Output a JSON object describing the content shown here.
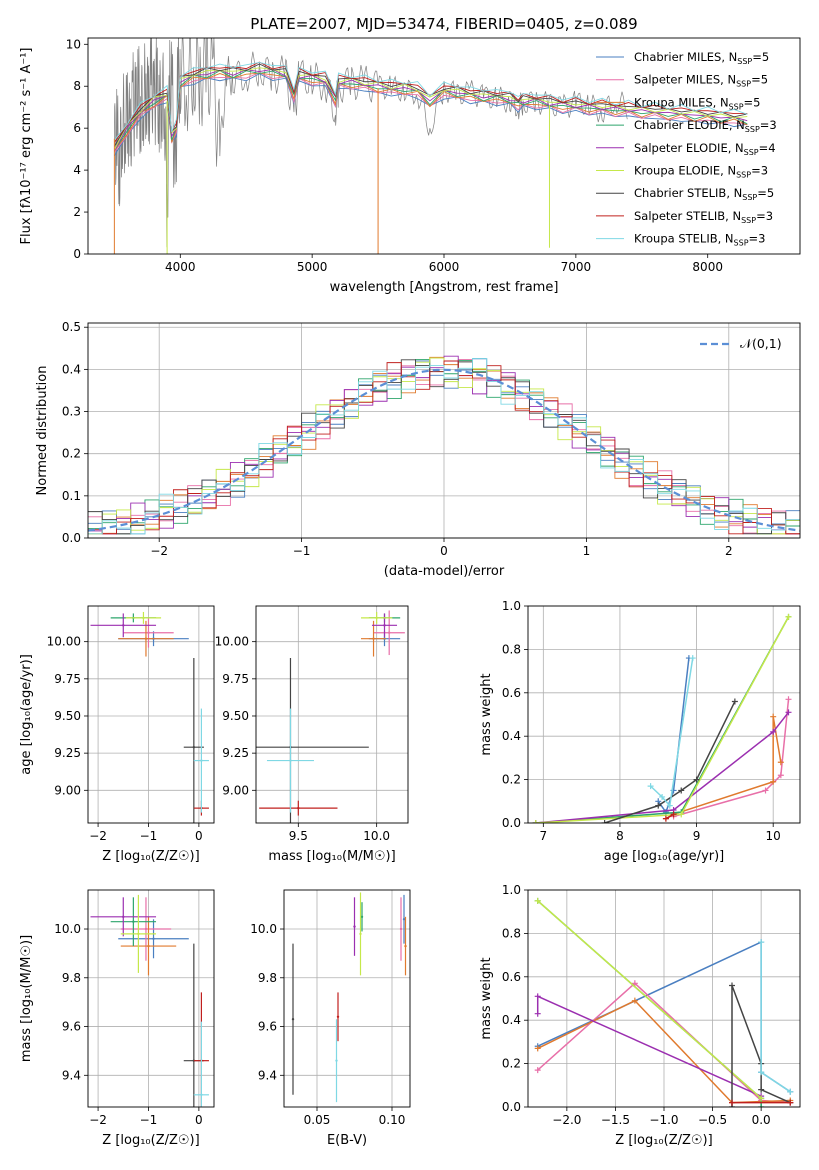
{
  "figure_title": "PLATE=2007, MJD=53474, FIBERID=0405, z=0.089",
  "chart_data": [
    {
      "id": "spectrum",
      "type": "line",
      "xlabel": "wavelength [Angstrom, rest frame]",
      "ylabel": "Flux [fλ10⁻¹⁷ erg cm⁻² s⁻¹ A⁻¹]",
      "xlim": [
        3300,
        8700
      ],
      "ylim": [
        0,
        10.3
      ],
      "xticks": [
        "4000",
        "5000",
        "6000",
        "7000",
        "8000"
      ],
      "yticks": [
        "0",
        "2",
        "4",
        "6",
        "8",
        "10"
      ],
      "grid": false,
      "legend": "right",
      "data_series": {
        "name": "data",
        "color": "#808080",
        "x": [
          3500,
          3520,
          3540,
          3560,
          3580,
          3600,
          3620,
          3640,
          3660,
          3680,
          3700,
          3720,
          3740,
          3760,
          3780,
          3800,
          3820,
          3840,
          3860,
          3880,
          3900,
          3920,
          3940,
          3960,
          3980,
          4000,
          4050,
          4100,
          4150,
          4200,
          4250,
          4300,
          4350,
          4400,
          4500,
          4600,
          4700,
          4800,
          4862,
          4900,
          5000,
          5100,
          5176,
          5200,
          5300,
          5400,
          5500,
          5600,
          5700,
          5800,
          5893,
          6000,
          6100,
          6200,
          6300,
          6400,
          6500,
          6563,
          6600,
          6700,
          6800,
          6900,
          7000,
          7100,
          7200,
          7300,
          7400
        ],
        "y": [
          5.2,
          5.6,
          4.2,
          6.5,
          6.0,
          7.1,
          5.3,
          7.3,
          6.8,
          7.8,
          6.9,
          7.4,
          7.9,
          7.2,
          8.4,
          7.0,
          8.1,
          6.7,
          7.7,
          7.3,
          2.2,
          8.3,
          7.6,
          3.2,
          8.0,
          8.6,
          8.2,
          8.8,
          8.4,
          8.7,
          8.3,
          4.8,
          8.6,
          8.4,
          8.6,
          8.9,
          8.5,
          8.6,
          6.5,
          8.5,
          8.3,
          8.2,
          6.8,
          8.0,
          8.2,
          8.1,
          8.0,
          7.9,
          7.8,
          7.7,
          6.0,
          7.9,
          7.6,
          7.7,
          7.5,
          7.4,
          7.3,
          7.0,
          7.2,
          7.3,
          7.1,
          7.0,
          7.2,
          7.1,
          6.8,
          7.3,
          7.0
        ]
      },
      "series": [
        {
          "name": "Chabrier MILES, N_SSP=5",
          "color": "#4a7fc1"
        },
        {
          "name": "Salpeter MILES, N_SSP=5",
          "color": "#e86fa8"
        },
        {
          "name": "Kroupa MILES, N_SSP=5",
          "color": "#e07a2e"
        },
        {
          "name": "Chabrier ELODIE, N_SSP=3",
          "color": "#2ca56b"
        },
        {
          "name": "Salpeter ELODIE, N_SSP=4",
          "color": "#9b2fb0"
        },
        {
          "name": "Kroupa ELODIE, N_SSP=3",
          "color": "#c5e84a"
        },
        {
          "name": "Chabrier STELIB, N_SSP=5",
          "color": "#444444"
        },
        {
          "name": "Salpeter STELIB, N_SSP=3",
          "color": "#c0201e"
        },
        {
          "name": "Kroupa STELIB, N_SSP=3",
          "color": "#7fd8e4"
        }
      ],
      "model_x": [
        3500,
        3600,
        3700,
        3800,
        3900,
        3935,
        3970,
        4000,
        4100,
        4200,
        4300,
        4400,
        4500,
        4600,
        4700,
        4800,
        4862,
        4900,
        5000,
        5100,
        5176,
        5200,
        5300,
        5400,
        5500,
        5600,
        5700,
        5800,
        5893,
        6000,
        6100,
        6200,
        6300,
        6400,
        6500,
        6563,
        6600,
        6700,
        6800,
        6900,
        7000,
        7100,
        7200,
        7300,
        7400,
        7500,
        7600,
        7700,
        7800,
        7900,
        8000,
        8100,
        8200,
        8300
      ],
      "model_y": [
        5.0,
        6.0,
        6.8,
        7.3,
        7.6,
        5.6,
        6.0,
        8.2,
        8.5,
        8.6,
        8.7,
        8.6,
        8.7,
        8.8,
        8.7,
        8.6,
        7.6,
        8.5,
        8.4,
        8.3,
        7.4,
        8.2,
        8.2,
        8.1,
        8.0,
        7.9,
        7.9,
        7.8,
        7.3,
        7.8,
        7.7,
        7.6,
        7.5,
        7.5,
        7.4,
        7.2,
        7.3,
        7.3,
        7.2,
        7.1,
        7.1,
        7.0,
        7.0,
        6.9,
        6.9,
        6.8,
        6.8,
        6.7,
        6.7,
        6.6,
        6.6,
        6.5,
        6.5,
        6.4
      ]
    },
    {
      "id": "residuals",
      "type": "line",
      "xlabel": "(data-model)/error",
      "ylabel": "Normed distribution",
      "xlim": [
        -2.5,
        2.5
      ],
      "ylim": [
        0,
        0.51
      ],
      "xticks": [
        "−2",
        "−1",
        "0",
        "1",
        "2"
      ],
      "yticks": [
        "0.0",
        "0.1",
        "0.2",
        "0.3",
        "0.4",
        "0.5"
      ],
      "grid": true,
      "legend": "top-right",
      "reference": {
        "name": "𝒩(0,1)",
        "color": "#5b8fd6"
      },
      "bin_centers": [
        -2.45,
        -2.35,
        -2.25,
        -2.15,
        -2.05,
        -1.95,
        -1.85,
        -1.75,
        -1.65,
        -1.55,
        -1.45,
        -1.35,
        -1.25,
        -1.15,
        -1.05,
        -0.95,
        -0.85,
        -0.75,
        -0.65,
        -0.55,
        -0.45,
        -0.35,
        -0.25,
        -0.15,
        -0.05,
        0.05,
        0.15,
        0.25,
        0.35,
        0.45,
        0.55,
        0.65,
        0.75,
        0.85,
        0.95,
        1.05,
        1.15,
        1.25,
        1.35,
        1.45,
        1.55,
        1.65,
        1.75,
        1.85,
        1.95,
        2.05,
        2.15,
        2.25,
        2.35,
        2.45
      ]
    },
    {
      "id": "age_vs_Z",
      "type": "scatter",
      "xlabel": "Z [log₁₀(Z/Z☉)]",
      "ylabel": "age [log₁₀(age/yr)]",
      "xlim": [
        -2.2,
        0.3
      ],
      "ylim": [
        8.78,
        10.24
      ],
      "xticks": [
        "−2",
        "−1",
        "0"
      ],
      "yticks": [
        "9.00",
        "9.25",
        "9.50",
        "9.75",
        "10.00"
      ],
      "grid": true,
      "points": [
        {
          "series": "Chabrier MILES",
          "x": -0.9,
          "y": 10.02,
          "xerr": 0.7,
          "yerr": 0.05
        },
        {
          "series": "Salpeter MILES",
          "x": -1.0,
          "y": 10.06,
          "xerr": 0.5,
          "yerr": 0.1
        },
        {
          "series": "Kroupa MILES",
          "x": -1.05,
          "y": 10.02,
          "xerr": 0.55,
          "yerr": 0.12
        },
        {
          "series": "Chabrier ELODIE",
          "x": -1.3,
          "y": 10.16,
          "xerr": 0.45,
          "yerr": 0.03
        },
        {
          "series": "Salpeter ELODIE",
          "x": -1.5,
          "y": 10.11,
          "xerr": 0.65,
          "yerr": 0.08
        },
        {
          "series": "Kroupa ELODIE",
          "x": -1.1,
          "y": 10.16,
          "xerr": 0.35,
          "yerr": 0.04
        },
        {
          "series": "Chabrier STELIB",
          "x": -0.1,
          "y": 9.29,
          "xerr": 0.2,
          "yerr": 0.6
        },
        {
          "series": "Salpeter STELIB",
          "x": 0.05,
          "y": 8.88,
          "xerr": 0.15,
          "yerr": 0.05
        },
        {
          "series": "Kroupa STELIB",
          "x": 0.05,
          "y": 9.2,
          "xerr": 0.15,
          "yerr": 0.35
        }
      ]
    },
    {
      "id": "age_vs_mass",
      "type": "scatter",
      "xlabel": "mass [log₁₀(M/M☉)]",
      "ylabel": "",
      "xlim": [
        9.23,
        10.2
      ],
      "ylim": [
        8.78,
        10.24
      ],
      "xticks": [
        "9.5",
        "10.0"
      ],
      "yticks": [
        "9.00",
        "9.25",
        "9.50",
        "9.75",
        "10.00"
      ],
      "grid": true,
      "points": [
        {
          "series": "Chabrier MILES",
          "x": 10.05,
          "y": 10.02,
          "xerr": 0.1,
          "yerr": 0.05
        },
        {
          "series": "Salpeter MILES",
          "x": 10.08,
          "y": 10.06,
          "xerr": 0.1,
          "yerr": 0.15
        },
        {
          "series": "Kroupa MILES",
          "x": 9.98,
          "y": 10.02,
          "xerr": 0.08,
          "yerr": 0.12
        },
        {
          "series": "Chabrier ELODIE",
          "x": 10.05,
          "y": 10.16,
          "xerr": 0.1,
          "yerr": 0.03
        },
        {
          "series": "Salpeter ELODIE",
          "x": 10.05,
          "y": 10.11,
          "xerr": 0.08,
          "yerr": 0.08
        },
        {
          "series": "Kroupa ELODIE",
          "x": 10.0,
          "y": 10.16,
          "xerr": 0.1,
          "yerr": 0.04
        },
        {
          "series": "Chabrier STELIB",
          "x": 9.45,
          "y": 9.29,
          "xerr": 0.5,
          "yerr": 0.6
        },
        {
          "series": "Salpeter STELIB",
          "x": 9.5,
          "y": 8.88,
          "xerr": 0.25,
          "yerr": 0.05
        },
        {
          "series": "Kroupa STELIB",
          "x": 9.45,
          "y": 9.2,
          "xerr": 0.15,
          "yerr": 0.35
        }
      ]
    },
    {
      "id": "massweight_vs_age",
      "type": "line",
      "xlabel": "age [log₁₀(age/yr)]",
      "ylabel": "mass weight",
      "xlim": [
        6.8,
        10.35
      ],
      "ylim": [
        0,
        1
      ],
      "xticks": [
        "7",
        "8",
        "9",
        "10"
      ],
      "yticks": [
        "0.0",
        "0.2",
        "0.4",
        "0.6",
        "0.8",
        "1.0"
      ],
      "grid": true,
      "series": [
        {
          "name": "Chabrier MILES",
          "x": [
            8.5,
            8.6,
            8.7,
            8.9
          ],
          "y": [
            0.1,
            0.05,
            0.15,
            0.76
          ]
        },
        {
          "name": "Salpeter MILES",
          "x": [
            8.7,
            9.9,
            10.1,
            10.2
          ],
          "y": [
            0.03,
            0.15,
            0.22,
            0.57
          ]
        },
        {
          "name": "Kroupa MILES",
          "x": [
            8.6,
            8.7,
            10.0,
            10.0,
            10.1
          ],
          "y": [
            0.02,
            0.04,
            0.19,
            0.49,
            0.28
          ]
        },
        {
          "name": "Chabrier ELODIE",
          "x": [
            6.9,
            8.8,
            10.2
          ],
          "y": [
            0.0,
            0.05,
            0.95
          ]
        },
        {
          "name": "Salpeter ELODIE",
          "x": [
            6.9,
            8.7,
            10.0,
            10.2
          ],
          "y": [
            0.0,
            0.06,
            0.42,
            0.51
          ]
        },
        {
          "name": "Kroupa ELODIE",
          "x": [
            6.9,
            8.8,
            10.2
          ],
          "y": [
            0.0,
            0.04,
            0.95
          ]
        },
        {
          "name": "Chabrier STELIB",
          "x": [
            7.8,
            8.5,
            8.8,
            9.0,
            9.5
          ],
          "y": [
            0.0,
            0.08,
            0.15,
            0.2,
            0.56
          ]
        },
        {
          "name": "Salpeter STELIB",
          "x": [
            8.6,
            8.7
          ],
          "y": [
            0.02,
            0.04
          ]
        },
        {
          "name": "Kroupa STELIB",
          "x": [
            8.4,
            8.55,
            8.65,
            8.95
          ],
          "y": [
            0.17,
            0.12,
            0.08,
            0.76
          ]
        }
      ]
    },
    {
      "id": "mass_vs_Z",
      "type": "scatter",
      "xlabel": "Z [log₁₀(Z/Z☉)]",
      "ylabel": "mass [log₁₀(M/M☉)]",
      "xlim": [
        -2.2,
        0.3
      ],
      "ylim": [
        9.27,
        10.16
      ],
      "xticks": [
        "−2",
        "−1",
        "0"
      ],
      "yticks": [
        "9.4",
        "9.6",
        "9.8",
        "10.0"
      ],
      "grid": true,
      "points": [
        {
          "series": "Chabrier MILES",
          "x": -0.9,
          "y": 9.96,
          "xerr": 0.7,
          "yerr": 0.08
        },
        {
          "series": "Salpeter MILES",
          "x": -1.05,
          "y": 10.0,
          "xerr": 0.5,
          "yerr": 0.13
        },
        {
          "series": "Kroupa MILES",
          "x": -1.0,
          "y": 9.93,
          "xerr": 0.55,
          "yerr": 0.12
        },
        {
          "series": "Chabrier ELODIE",
          "x": -1.3,
          "y": 10.03,
          "xerr": 0.45,
          "yerr": 0.1
        },
        {
          "series": "Salpeter ELODIE",
          "x": -1.5,
          "y": 10.05,
          "xerr": 0.65,
          "yerr": 0.08
        },
        {
          "series": "Kroupa ELODIE",
          "x": -1.2,
          "y": 9.98,
          "xerr": 0.35,
          "yerr": 0.16
        },
        {
          "series": "Chabrier STELIB",
          "x": -0.1,
          "y": 9.46,
          "xerr": 0.2,
          "yerr": 0.48
        },
        {
          "series": "Salpeter STELIB",
          "x": 0.05,
          "y": 9.46,
          "xerr": 0.15,
          "yerr": 0.28
        },
        {
          "series": "Kroupa STELIB",
          "x": 0.05,
          "y": 9.32,
          "xerr": 0.15,
          "yerr": 0.3
        }
      ]
    },
    {
      "id": "mass_vs_ebv",
      "type": "scatter",
      "xlabel": "E(B-V)",
      "ylabel": "",
      "xlim": [
        0.028,
        0.112
      ],
      "ylim": [
        9.27,
        10.16
      ],
      "xticks": [
        "0.05",
        "0.10"
      ],
      "yticks": [
        "9.4",
        "9.6",
        "9.8",
        "10.0"
      ],
      "grid": true,
      "points": [
        {
          "series": "Chabrier MILES",
          "x": 0.108,
          "y": 10.04,
          "yerr": 0.1
        },
        {
          "series": "Salpeter MILES",
          "x": 0.106,
          "y": 10.0,
          "yerr": 0.13
        },
        {
          "series": "Kroupa MILES",
          "x": 0.109,
          "y": 9.93,
          "yerr": 0.12
        },
        {
          "series": "Chabrier ELODIE",
          "x": 0.08,
          "y": 10.05,
          "yerr": 0.06
        },
        {
          "series": "Salpeter ELODIE",
          "x": 0.075,
          "y": 10.01,
          "yerr": 0.12
        },
        {
          "series": "Kroupa ELODIE",
          "x": 0.079,
          "y": 9.98,
          "yerr": 0.17
        },
        {
          "series": "Chabrier STELIB",
          "x": 0.034,
          "y": 9.63,
          "yerr": 0.31
        },
        {
          "series": "Salpeter STELIB",
          "x": 0.064,
          "y": 9.64,
          "yerr": 0.1
        },
        {
          "series": "Kroupa STELIB",
          "x": 0.063,
          "y": 9.46,
          "yerr": 0.17
        }
      ]
    },
    {
      "id": "massweight_vs_Z",
      "type": "line",
      "xlabel": "Z [log₁₀(Z/Z☉)]",
      "ylabel": "mass weight",
      "xlim": [
        -2.4,
        0.4
      ],
      "ylim": [
        0,
        1
      ],
      "xticks": [
        "−2.0",
        "−1.5",
        "−1.0",
        "−0.5",
        "0.0"
      ],
      "yticks": [
        "0.0",
        "0.2",
        "0.4",
        "0.6",
        "0.8",
        "1.0"
      ],
      "grid": true,
      "series": [
        {
          "name": "Chabrier MILES",
          "x": [
            -2.3,
            0.0,
            0.0,
            0.3
          ],
          "y": [
            0.28,
            0.76,
            0.16,
            0.07
          ]
        },
        {
          "name": "Salpeter MILES",
          "x": [
            -2.3,
            -1.3,
            0.0,
            0.3
          ],
          "y": [
            0.17,
            0.57,
            0.03,
            0.02
          ]
        },
        {
          "name": "Kroupa MILES",
          "x": [
            -2.3,
            -1.3,
            -0.3,
            0.3
          ],
          "y": [
            0.27,
            0.49,
            0.02,
            0.03
          ]
        },
        {
          "name": "Chabrier ELODIE",
          "x": [
            -2.3,
            0.0,
            0.0
          ],
          "y": [
            0.95,
            0.04,
            0.0
          ]
        },
        {
          "name": "Salpeter ELODIE",
          "x": [
            -2.3,
            -2.3,
            0.0
          ],
          "y": [
            0.43,
            0.51,
            0.05
          ]
        },
        {
          "name": "Kroupa ELODIE",
          "x": [
            -2.3,
            0.0
          ],
          "y": [
            0.95,
            0.04
          ]
        },
        {
          "name": "Chabrier STELIB",
          "x": [
            -0.3,
            -0.3,
            0.0,
            0.0,
            0.3
          ],
          "y": [
            0.0,
            0.56,
            0.2,
            0.08,
            0.02
          ]
        },
        {
          "name": "Salpeter STELIB",
          "x": [
            -0.3,
            0.3
          ],
          "y": [
            0.02,
            0.02
          ]
        },
        {
          "name": "Kroupa STELIB",
          "x": [
            0.0,
            0.0,
            0.3
          ],
          "y": [
            0.76,
            0.16,
            0.07
          ]
        }
      ]
    }
  ]
}
